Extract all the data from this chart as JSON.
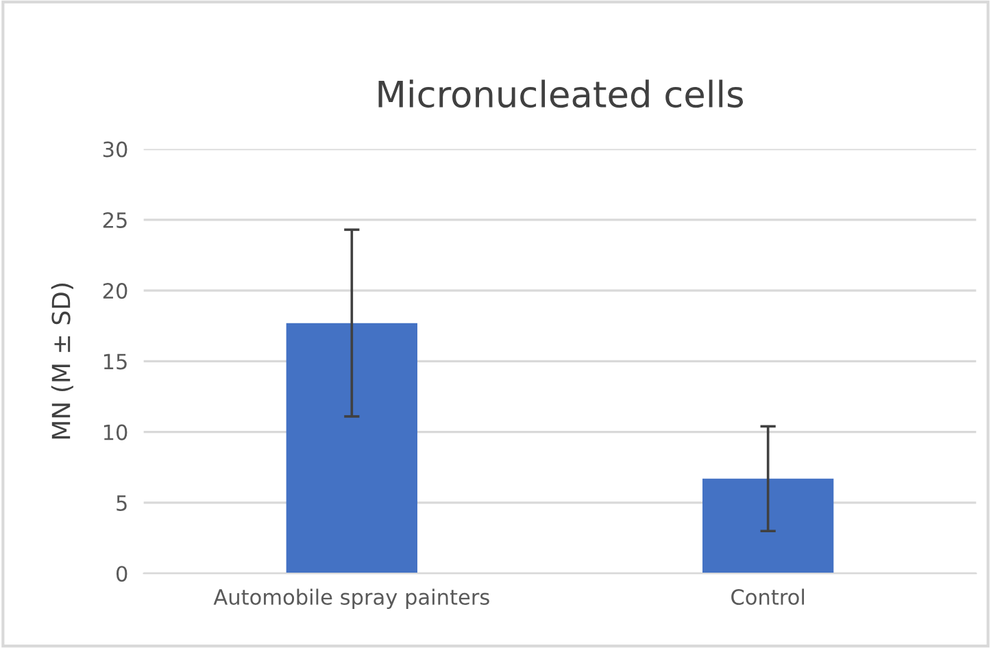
{
  "chart_data": {
    "type": "bar",
    "title": "Micronucleated cells",
    "ylabel": "MN (M ± SD)",
    "categories": [
      "Automobile spray painters",
      "Control"
    ],
    "values": [
      17.7,
      6.7
    ],
    "errors": [
      6.6,
      3.7
    ],
    "color": "#4472c4",
    "ylim": [
      0,
      30
    ],
    "yticks": [
      0,
      5,
      10,
      15,
      20,
      25,
      30
    ],
    "grid": "y"
  }
}
